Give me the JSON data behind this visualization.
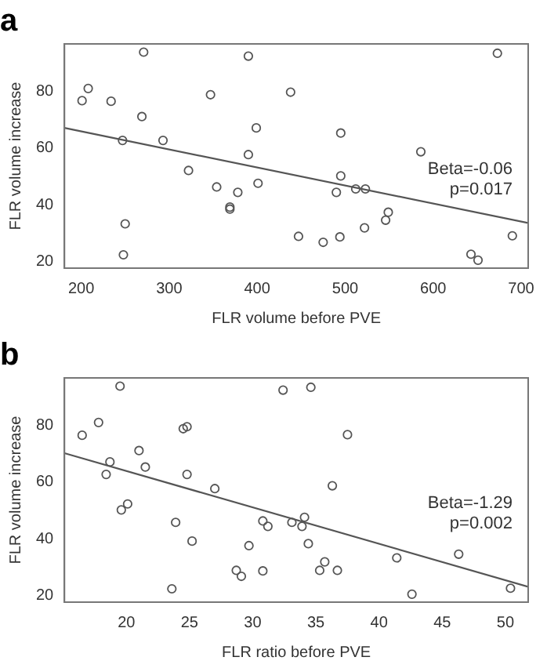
{
  "chart_data": [
    {
      "type": "scatter",
      "title": "a",
      "xlabel": "FLR volume before PVE",
      "ylabel": "FLR volume increase",
      "xlim": [
        181,
        708
      ],
      "xticks": [
        200,
        300,
        400,
        500,
        600,
        700
      ],
      "ylim": [
        17.7,
        96.7
      ],
      "yticks": [
        20,
        40,
        60,
        80
      ],
      "grid": false,
      "legend": false,
      "marker": "circle",
      "annotations": [
        "Beta=-0.06",
        "p=0.017"
      ],
      "series": [
        {
          "color": "#555555",
          "x": [
            201,
            208,
            234,
            271,
            269,
            247,
            293,
            250,
            248,
            322,
            347,
            354,
            378,
            369,
            369,
            390,
            390,
            399,
            401,
            438,
            447,
            475,
            490,
            494,
            495,
            495,
            512,
            523,
            522,
            546,
            549,
            586,
            643,
            651,
            673,
            690
          ],
          "values": [
            76.7,
            81,
            76.5,
            93.8,
            71.1,
            62.7,
            62.7,
            33.3,
            22.4,
            52.1,
            78.8,
            46.3,
            44.4,
            39.2,
            38.5,
            92.4,
            57.7,
            67.1,
            47.6,
            79.7,
            28.9,
            26.8,
            44.4,
            28.7,
            65.3,
            50.2,
            45.6,
            45.6,
            31.9,
            34.6,
            37.4,
            58.7,
            22.6,
            20.5,
            93.4,
            29.1
          ]
        },
        {
          "type": "line",
          "marker": "none",
          "color": "#555555",
          "x": [
            181,
            708
          ],
          "values": [
            67.1,
            33.6
          ]
        }
      ]
    },
    {
      "type": "scatter",
      "title": "b",
      "xlabel": "FLR ratio before PVE",
      "ylabel": "FLR volume increase",
      "xlim": [
        15.1,
        51.8
      ],
      "xticks": [
        20,
        25,
        30,
        35,
        40,
        45,
        50
      ],
      "ylim": [
        17.7,
        96.7
      ],
      "yticks": [
        20,
        40,
        60,
        80
      ],
      "grid": false,
      "legend": false,
      "marker": "circle",
      "annotations": [
        "Beta=-1.29",
        "p=0.002"
      ],
      "series": [
        {
          "color": "#555555",
          "x": [
            16.5,
            17.8,
            19.5,
            18.4,
            18.7,
            21.0,
            21.5,
            19.6,
            20.1,
            23.9,
            23.6,
            24.5,
            24.8,
            24.8,
            25.2,
            27.0,
            28.7,
            29.1,
            29.7,
            30.8,
            30.8,
            31.2,
            32.4,
            33.1,
            33.9,
            34.1,
            34.4,
            34.6,
            35.7,
            35.3,
            36.7,
            36.3,
            37.5,
            41.4,
            42.6,
            46.3,
            50.4
          ],
          "values": [
            76.5,
            81,
            93.8,
            62.7,
            67.1,
            71.1,
            65.3,
            50.2,
            52.3,
            45.8,
            22.4,
            78.8,
            79.5,
            62.7,
            39.2,
            57.7,
            28.9,
            26.8,
            37.6,
            28.7,
            46.3,
            44.4,
            92.4,
            45.8,
            44.4,
            47.6,
            38.3,
            93.4,
            31.9,
            28.9,
            28.9,
            58.7,
            76.7,
            33.3,
            20.5,
            34.6,
            22.6
          ]
        },
        {
          "type": "line",
          "marker": "none",
          "color": "#555555",
          "x": [
            15.1,
            51.8
          ],
          "values": [
            70.2,
            23.1
          ]
        }
      ]
    }
  ]
}
